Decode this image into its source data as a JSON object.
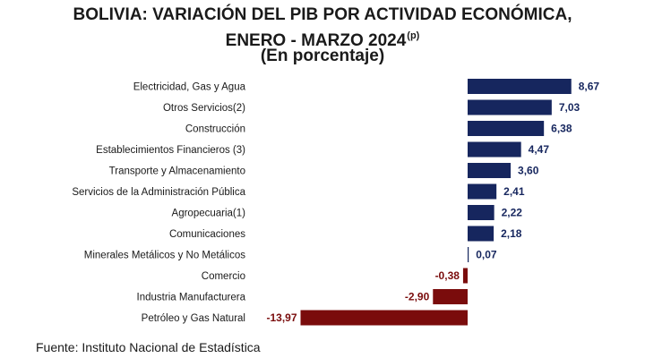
{
  "title_line1": "BOLIVIA: VARIACIÓN DEL PIB POR ACTIVIDAD ECONÓMICA,",
  "title_line2": "ENERO - MARZO 2024",
  "title_sup": "(p)",
  "title_line3": "(En porcentaje)",
  "source": "Fuente: Instituto Nacional de Estadística",
  "colors": {
    "positive": "#16265e",
    "negative": "#7a0c0c",
    "text": "#1a1a1a"
  },
  "chart_data": {
    "type": "bar",
    "orientation": "horizontal",
    "categories": [
      "Electricidad, Gas y Agua",
      "Otros Servicios(2)",
      "Construcción",
      "Establecimientos Financieros (3)",
      "Transporte y Almacenamiento",
      "Servicios de la Administración Pública",
      "Agropecuaria(1)",
      "Comunicaciones",
      "Minerales Metálicos y No Metálicos",
      "Comercio",
      "Industria Manufacturera",
      "Petróleo y Gas Natural"
    ],
    "values": [
      8.67,
      7.03,
      6.38,
      4.47,
      3.6,
      2.41,
      2.22,
      2.18,
      0.07,
      -0.38,
      -2.9,
      -13.97
    ],
    "value_labels": [
      "8,67",
      "7,03",
      "6,38",
      "4,47",
      "3,60",
      "2,41",
      "2,22",
      "2,18",
      "0,07",
      "-0,38",
      "-2,90",
      "-13,97"
    ],
    "xlim": [
      -13.97,
      8.67
    ],
    "grid": false,
    "legend": "none"
  }
}
